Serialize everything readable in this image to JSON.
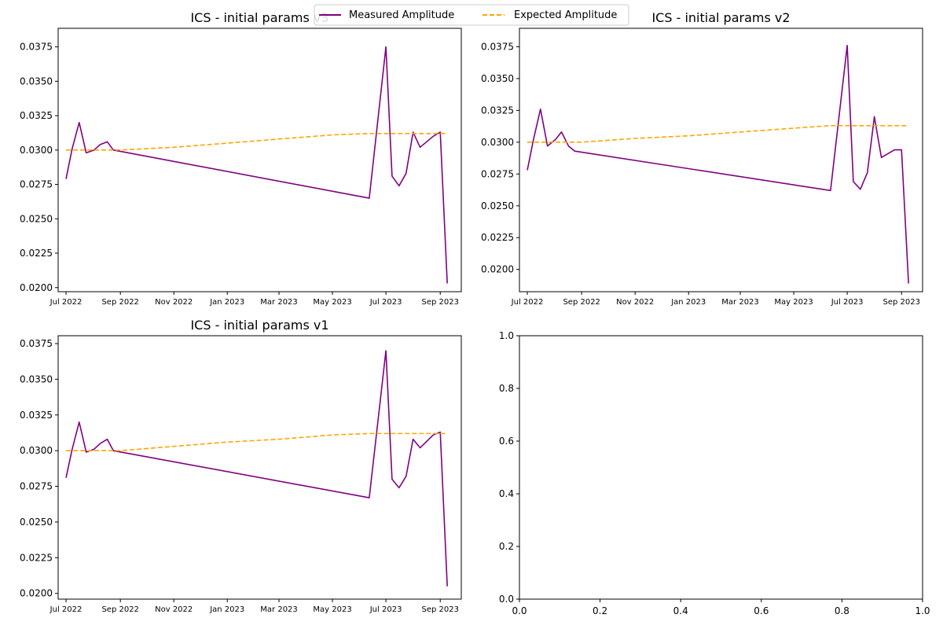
{
  "legend": {
    "entries": [
      {
        "label": "Measured Amplitude",
        "color": "#800080",
        "style": "solid"
      },
      {
        "label": "Expected Amplitude",
        "color": "#FFA500",
        "style": "dashed"
      }
    ],
    "placement": "top-center"
  },
  "chart_data": [
    {
      "type": "line",
      "title": "ICS - initial params v3",
      "xlabel": "",
      "ylabel": "",
      "xlim": [
        "2022-06-22",
        "2023-09-25"
      ],
      "ylim": [
        0.0197,
        0.03885
      ],
      "x_ticks": [
        "2022-07-01",
        "2022-09-01",
        "2022-11-01",
        "2023-01-01",
        "2023-03-01",
        "2023-05-01",
        "2023-07-01",
        "2023-09-01"
      ],
      "x_tick_labels": [
        "Jul 2022",
        "Sep 2022",
        "Nov 2022",
        "Jan 2023",
        "Mar 2023",
        "May 2023",
        "Jul 2023",
        "Sep 2023"
      ],
      "y_ticks": [
        0.02,
        0.0225,
        0.025,
        0.0275,
        0.03,
        0.0325,
        0.035,
        0.0375
      ],
      "y_tick_labels": [
        "0.0200",
        "0.0225",
        "0.0250",
        "0.0275",
        "0.0300",
        "0.0325",
        "0.0350",
        "0.0375"
      ],
      "grid": false,
      "series": [
        {
          "name": "Measured Amplitude",
          "color": "#800080",
          "style": "solid",
          "x": [
            "2022-07-01",
            "2022-07-08",
            "2022-07-16",
            "2022-07-24",
            "2022-08-02",
            "2022-08-09",
            "2022-08-17",
            "2022-08-24",
            "2023-06-12",
            "2023-07-01",
            "2023-07-08",
            "2023-07-16",
            "2023-07-24",
            "2023-08-01",
            "2023-08-09",
            "2023-08-24",
            "2023-09-01",
            "2023-09-09"
          ],
          "y": [
            0.0279,
            0.0301,
            0.032,
            0.0298,
            0.03,
            0.0304,
            0.0306,
            0.03,
            0.0265,
            0.0375,
            0.0281,
            0.0274,
            0.0283,
            0.0313,
            0.0302,
            0.031,
            0.0313,
            0.0203
          ]
        },
        {
          "name": "Expected Amplitude",
          "color": "#FFA500",
          "style": "dashed",
          "x": [
            "2022-07-01",
            "2022-09-01",
            "2022-11-01",
            "2023-01-01",
            "2023-03-01",
            "2023-05-01",
            "2023-06-12",
            "2023-07-01",
            "2023-09-09"
          ],
          "y": [
            0.03,
            0.03,
            0.0302,
            0.0305,
            0.0308,
            0.0311,
            0.0312,
            0.0312,
            0.0312
          ]
        }
      ]
    },
    {
      "type": "line",
      "title": "ICS - initial params v2",
      "xlabel": "",
      "ylabel": "",
      "xlim": [
        "2022-06-22",
        "2023-09-25"
      ],
      "ylim": [
        0.01825,
        0.03895
      ],
      "x_ticks": [
        "2022-07-01",
        "2022-09-01",
        "2022-11-01",
        "2023-01-01",
        "2023-03-01",
        "2023-05-01",
        "2023-07-01",
        "2023-09-01"
      ],
      "x_tick_labels": [
        "Jul 2022",
        "Sep 2022",
        "Nov 2022",
        "Jan 2023",
        "Mar 2023",
        "May 2023",
        "Jul 2023",
        "Sep 2023"
      ],
      "y_ticks": [
        0.02,
        0.0225,
        0.025,
        0.0275,
        0.03,
        0.0325,
        0.035,
        0.0375
      ],
      "y_tick_labels": [
        "0.0200",
        "0.0225",
        "0.0250",
        "0.0275",
        "0.0300",
        "0.0325",
        "0.0350",
        "0.0375"
      ],
      "grid": false,
      "series": [
        {
          "name": "Measured Amplitude",
          "color": "#800080",
          "style": "solid",
          "x": [
            "2022-07-01",
            "2022-07-08",
            "2022-07-16",
            "2022-07-24",
            "2022-08-02",
            "2022-08-09",
            "2022-08-17",
            "2022-08-24",
            "2023-06-12",
            "2023-07-01",
            "2023-07-08",
            "2023-07-16",
            "2023-07-24",
            "2023-08-01",
            "2023-08-09",
            "2023-08-24",
            "2023-09-01",
            "2023-09-09"
          ],
          "y": [
            0.0278,
            0.0302,
            0.0326,
            0.0297,
            0.0302,
            0.0308,
            0.0297,
            0.0293,
            0.0262,
            0.0376,
            0.0269,
            0.0263,
            0.0276,
            0.032,
            0.0288,
            0.0294,
            0.0294,
            0.0189
          ]
        },
        {
          "name": "Expected Amplitude",
          "color": "#FFA500",
          "style": "dashed",
          "x": [
            "2022-07-01",
            "2022-09-01",
            "2022-11-01",
            "2023-01-01",
            "2023-03-01",
            "2023-05-01",
            "2023-06-12",
            "2023-07-01",
            "2023-09-09"
          ],
          "y": [
            0.03,
            0.03,
            0.0303,
            0.0305,
            0.0308,
            0.0311,
            0.0313,
            0.0313,
            0.0313
          ]
        }
      ]
    },
    {
      "type": "line",
      "title": "ICS - initial params v1",
      "xlabel": "",
      "ylabel": "",
      "xlim": [
        "2022-06-22",
        "2023-09-25"
      ],
      "ylim": [
        0.0196,
        0.03805
      ],
      "x_ticks": [
        "2022-07-01",
        "2022-09-01",
        "2022-11-01",
        "2023-01-01",
        "2023-03-01",
        "2023-05-01",
        "2023-07-01",
        "2023-09-01"
      ],
      "x_tick_labels": [
        "Jul 2022",
        "Sep 2022",
        "Nov 2022",
        "Jan 2023",
        "Mar 2023",
        "May 2023",
        "Jul 2023",
        "Sep 2023"
      ],
      "y_ticks": [
        0.02,
        0.0225,
        0.025,
        0.0275,
        0.03,
        0.0325,
        0.035,
        0.0375
      ],
      "y_tick_labels": [
        "0.0200",
        "0.0225",
        "0.0250",
        "0.0275",
        "0.0300",
        "0.0325",
        "0.0350",
        "0.0375"
      ],
      "grid": false,
      "series": [
        {
          "name": "Measured Amplitude",
          "color": "#800080",
          "style": "solid",
          "x": [
            "2022-07-01",
            "2022-07-08",
            "2022-07-16",
            "2022-07-24",
            "2022-08-02",
            "2022-08-09",
            "2022-08-17",
            "2022-08-24",
            "2023-06-12",
            "2023-07-01",
            "2023-07-08",
            "2023-07-16",
            "2023-07-24",
            "2023-08-01",
            "2023-08-09",
            "2023-08-24",
            "2023-09-01",
            "2023-09-09"
          ],
          "y": [
            0.0281,
            0.0301,
            0.032,
            0.0299,
            0.0301,
            0.0305,
            0.0308,
            0.03,
            0.0267,
            0.037,
            0.028,
            0.0274,
            0.0282,
            0.0308,
            0.0302,
            0.0311,
            0.0313,
            0.0205
          ]
        },
        {
          "name": "Expected Amplitude",
          "color": "#FFA500",
          "style": "dashed",
          "x": [
            "2022-07-01",
            "2022-09-01",
            "2022-11-01",
            "2023-01-01",
            "2023-03-01",
            "2023-05-01",
            "2023-06-12",
            "2023-07-01",
            "2023-09-09"
          ],
          "y": [
            0.03,
            0.03,
            0.0303,
            0.0306,
            0.0308,
            0.0311,
            0.0312,
            0.0312,
            0.0312
          ]
        }
      ]
    },
    {
      "type": "line",
      "title": "",
      "xlim": [
        0,
        1
      ],
      "ylim": [
        0,
        1
      ],
      "x_ticks": [
        0,
        0.2,
        0.4,
        0.6,
        0.8,
        1
      ],
      "x_tick_labels": [
        "0.0",
        "0.2",
        "0.4",
        "0.6",
        "0.8",
        "1.0"
      ],
      "y_ticks": [
        0,
        0.2,
        0.4,
        0.6,
        0.8,
        1
      ],
      "y_tick_labels": [
        "0.0",
        "0.2",
        "0.4",
        "0.6",
        "0.8",
        "1.0"
      ],
      "grid": false,
      "series": []
    }
  ]
}
